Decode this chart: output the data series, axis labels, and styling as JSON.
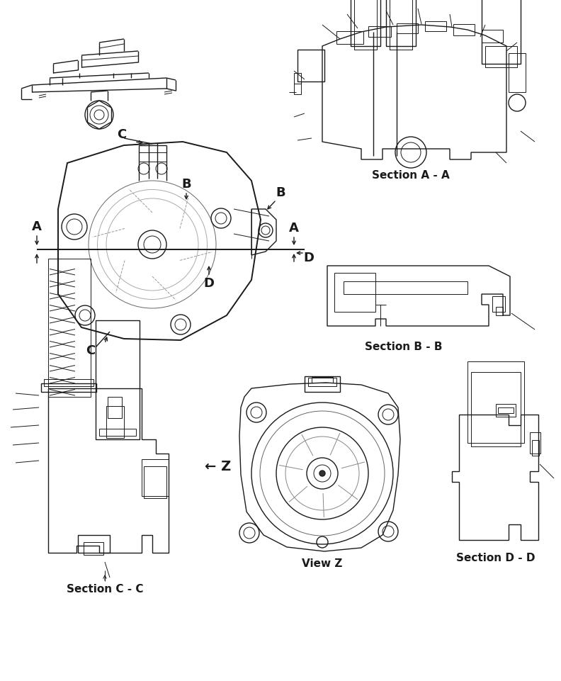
{
  "bg_color": "#ffffff",
  "line_color": "#1a1a1a",
  "fig_width": 7.92,
  "fig_height": 9.61,
  "dpi": 100,
  "labels": {
    "section_aa": "Section A - A",
    "section_bb": "Section B - B",
    "section_cc": "Section C - C",
    "section_dd": "Section D - D",
    "view_z": "View Z",
    "letter_a": "A",
    "letter_b": "B",
    "letter_c": "C",
    "letter_d": "D",
    "arrow_z": "← Z"
  }
}
